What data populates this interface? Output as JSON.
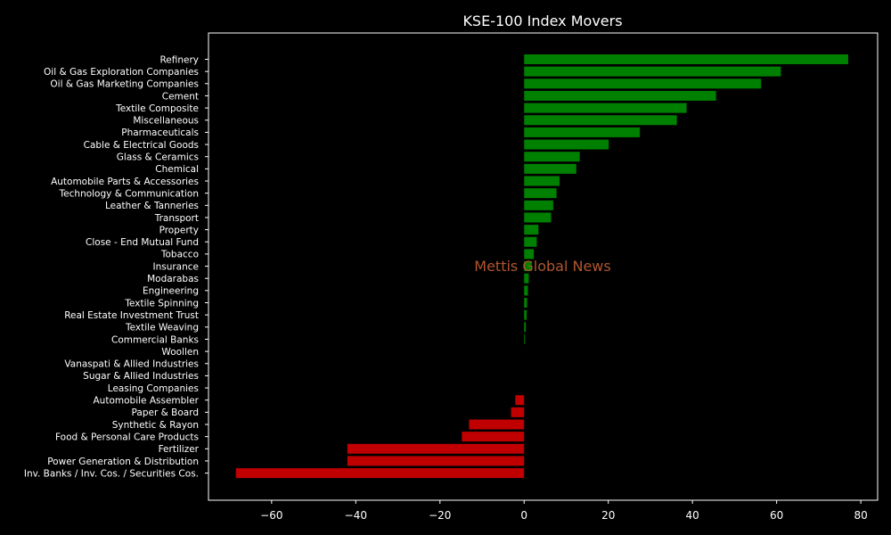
{
  "chart_data": {
    "type": "bar",
    "orientation": "horizontal",
    "title": "KSE-100 Index Movers",
    "watermark": "Mettis Global News",
    "xlim": [
      -75,
      84
    ],
    "xticks": [
      -60,
      -40,
      -20,
      0,
      20,
      40,
      60,
      80
    ],
    "grid": false,
    "colors": {
      "positive": "#008000",
      "negative": "#c00000",
      "background": "#000000",
      "axes": "#ffffff",
      "watermark": "#b0562f"
    },
    "categories": [
      "Refinery",
      "Oil & Gas Exploration Companies",
      "Oil & Gas Marketing Companies",
      "Cement",
      "Textile Composite",
      "Miscellaneous",
      "Pharmaceuticals",
      "Cable & Electrical Goods",
      "Glass & Ceramics",
      "Chemical",
      "Automobile Parts & Accessories",
      "Technology & Communication",
      "Leather & Tanneries",
      "Transport",
      "Property",
      "Close - End Mutual Fund",
      "Tobacco",
      "Insurance",
      "Modarabas",
      "Engineering",
      "Textile Spinning",
      "Real Estate Investment Trust",
      "Textile Weaving",
      "Commercial Banks",
      "Woollen",
      "Vanaspati & Allied Industries",
      "Sugar & Allied Industries",
      "Leasing Companies",
      "Automobile Assembler",
      "Paper & Board",
      "Synthetic & Rayon",
      "Food & Personal Care Products",
      "Fertilizer",
      "Power Generation & Distribution",
      "Inv. Banks / Inv. Cos. / Securities Cos."
    ],
    "values": [
      77.0,
      61.0,
      56.3,
      45.6,
      38.6,
      36.3,
      27.5,
      20.1,
      13.2,
      12.4,
      8.4,
      7.7,
      6.9,
      6.4,
      3.4,
      3.0,
      2.3,
      1.8,
      1.1,
      0.9,
      0.7,
      0.6,
      0.4,
      0.2,
      0,
      0,
      0,
      0,
      -2.1,
      -3.1,
      -13.1,
      -14.8,
      -42.0,
      -42.0,
      -68.5
    ]
  }
}
